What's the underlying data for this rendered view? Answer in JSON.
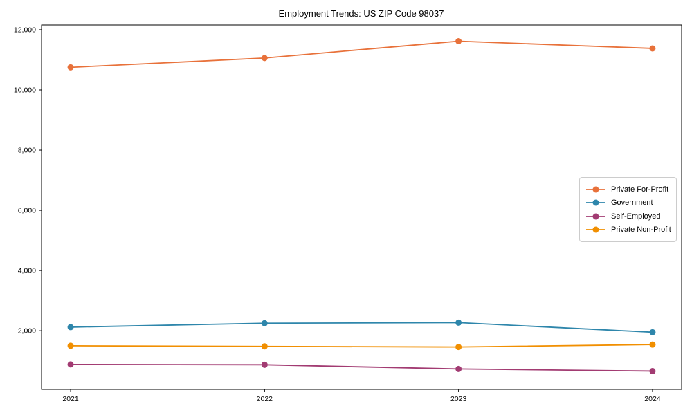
{
  "chart_data": {
    "type": "line",
    "title": "Employment Trends: US ZIP Code 98037",
    "x": [
      2021,
      2022,
      2023,
      2024
    ],
    "x_tick_labels": [
      "2021",
      "2022",
      "2023",
      "2024"
    ],
    "series": [
      {
        "name": "Private For-Profit",
        "color": "#E8713A",
        "values": [
          10750,
          11060,
          11620,
          11380
        ]
      },
      {
        "name": "Government",
        "color": "#2E86AB",
        "values": [
          2120,
          2250,
          2270,
          1950
        ]
      },
      {
        "name": "Self-Employed",
        "color": "#A23B72",
        "values": [
          880,
          870,
          730,
          660
        ]
      },
      {
        "name": "Private Non-Profit",
        "color": "#F18F01",
        "values": [
          1500,
          1480,
          1460,
          1540
        ]
      }
    ],
    "xlim": [
      2020.85,
      2024.15
    ],
    "ylim": [
      50,
      12160
    ],
    "yticks": [
      2000,
      4000,
      6000,
      8000,
      10000,
      12000
    ],
    "ytick_labels": [
      "2,000",
      "4,000",
      "6,000",
      "8,000",
      "10,000",
      "12,000"
    ],
    "grid": false,
    "legend_position": "center-right",
    "xlabel": "",
    "ylabel": "",
    "axis_color": "#000000",
    "tick_label_color": "#000000"
  }
}
